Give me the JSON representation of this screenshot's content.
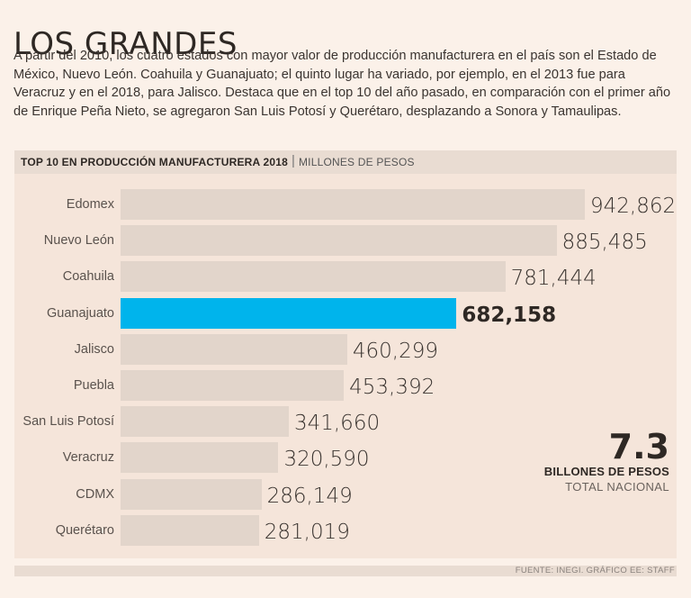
{
  "title": "LOS GRANDES",
  "intro": "A partir del 2010, los cuatro estados con mayor valor de producción manufacturera en el país son el Estado de México, Nuevo León. Coahuila y Guanajuato; el quinto  lugar ha variado, por ejemplo, en el 2013 fue para Veracruz y en el 2018, para Jalisco. Destaca que en el top 10 del año pasado, en comparación con el primer año de Enrique Peña Nieto, se agregaron San Luis Potosí y Querétaro, desplazando a Sonora y Tamaulipas.",
  "chart_data": {
    "type": "bar",
    "orientation": "horizontal",
    "title": "TOP 10 EN PRODUCCIÓN MANUFACTURERA 2018",
    "unit": "MILLONES DE PESOS",
    "categories": [
      "Edomex",
      "Nuevo León",
      "Coahuila",
      "Guanajuato",
      "Jalisco",
      "Puebla",
      "San Luis Potosí",
      "Veracruz",
      "CDMX",
      "Querétaro"
    ],
    "values": [
      942862,
      885485,
      781444,
      682158,
      460299,
      453392,
      341660,
      320590,
      286149,
      281019
    ],
    "value_labels": [
      "942,862",
      "885,485",
      "781,444",
      "682,158",
      "460,299",
      "453,392",
      "341,660",
      "320,590",
      "286,149",
      "281,019"
    ],
    "highlighted": "Guanajuato",
    "xlim": [
      0,
      942862
    ]
  },
  "colors": {
    "background": "#fbf1e9",
    "bar": "#e2d5cb",
    "highlight": "#00b4ec"
  },
  "total": {
    "value": "7.3",
    "label": "BILLONES DE PESOS",
    "sublabel": "TOTAL NACIONAL"
  },
  "footer": "FUENTE: INEGI. GRÁFICO EE: STAFF"
}
